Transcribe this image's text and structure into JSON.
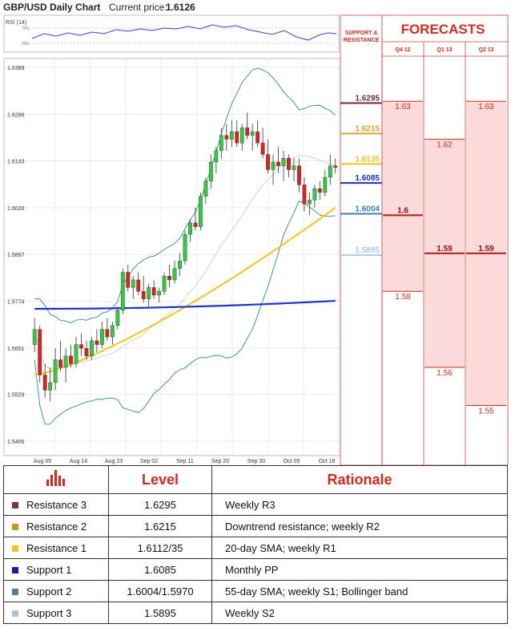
{
  "header": {
    "title": "GBP/USD Daily Chart",
    "price_label": "Current price:",
    "price_value": "1.6126"
  },
  "rsi_label": "RSI (14)",
  "rsi_levels": [
    "70%",
    "30%"
  ],
  "price_axis_ticks": [
    "1.6389",
    "1.6266",
    "1.6143",
    "1.6020",
    "1.5897",
    "1.5774",
    "1.5651",
    "1.5529",
    "1.5406"
  ],
  "date_axis_ticks": [
    "Aug 05",
    "Aug 14",
    "Aug 23",
    "Sep 02",
    "Sep 11",
    "Sep 20",
    "Sep 30",
    "Oct 09",
    "Oct 18"
  ],
  "sr_header": [
    "SUPPORT &",
    "RESISTANCE"
  ],
  "forecast_title": "FORECASTS",
  "forecast_cols": [
    "Q4 12",
    "Q1 13",
    "Q2 13"
  ],
  "chart_data": {
    "type": "candlestick",
    "title": "GBP/USD Daily Chart",
    "ylim": [
      1.5406,
      1.6389
    ],
    "levels": [
      {
        "value": 1.6295,
        "label": "1.6295",
        "color": "#6b2c3a"
      },
      {
        "value": 1.6215,
        "label": "1.6215",
        "color": "#d9a22a"
      },
      {
        "value": 1.6135,
        "label": "1.6135",
        "color": "#f2c21b"
      },
      {
        "value": 1.6085,
        "label": "1.6085",
        "color": "#1a2ec0"
      },
      {
        "value": 1.6004,
        "label": "1.6004",
        "color": "#3b7fb5"
      },
      {
        "value": 1.5895,
        "label": "1.5895",
        "color": "#aacbe0"
      }
    ],
    "forecasts": [
      {
        "period": "Q4 12",
        "values": [
          1.63,
          1.6,
          1.58
        ],
        "labels": [
          "1.63",
          "1.6",
          "1.58"
        ],
        "mid_index": 1
      },
      {
        "period": "Q1 13",
        "values": [
          1.62,
          1.59,
          1.56
        ],
        "labels": [
          "1.62",
          "1.59",
          "1.56"
        ],
        "mid_index": 1
      },
      {
        "period": "Q2 13",
        "values": [
          1.63,
          1.59,
          1.55
        ],
        "labels": [
          "1.63",
          "1.59",
          "1.55"
        ],
        "mid_index": 1
      }
    ],
    "candles": [
      [
        1.566,
        1.573,
        1.564,
        1.57
      ],
      [
        1.57,
        1.571,
        1.556,
        1.558
      ],
      [
        1.558,
        1.561,
        1.552,
        1.554
      ],
      [
        1.554,
        1.56,
        1.551,
        1.556
      ],
      [
        1.556,
        1.565,
        1.554,
        1.562
      ],
      [
        1.562,
        1.567,
        1.559,
        1.56
      ],
      [
        1.56,
        1.565,
        1.556,
        1.563
      ],
      [
        1.563,
        1.566,
        1.56,
        1.561
      ],
      [
        1.561,
        1.568,
        1.56,
        1.566
      ],
      [
        1.566,
        1.569,
        1.563,
        1.565
      ],
      [
        1.565,
        1.567,
        1.562,
        1.563
      ],
      [
        1.563,
        1.568,
        1.562,
        1.567
      ],
      [
        1.567,
        1.57,
        1.564,
        1.566
      ],
      [
        1.566,
        1.572,
        1.565,
        1.57
      ],
      [
        1.57,
        1.573,
        1.567,
        1.568
      ],
      [
        1.568,
        1.572,
        1.566,
        1.571
      ],
      [
        1.571,
        1.576,
        1.57,
        1.575
      ],
      [
        1.575,
        1.586,
        1.574,
        1.585
      ],
      [
        1.585,
        1.587,
        1.58,
        1.581
      ],
      [
        1.581,
        1.584,
        1.578,
        1.583
      ],
      [
        1.583,
        1.585,
        1.579,
        1.58
      ],
      [
        1.58,
        1.584,
        1.577,
        1.578
      ],
      [
        1.578,
        1.582,
        1.576,
        1.581
      ],
      [
        1.581,
        1.583,
        1.578,
        1.579
      ],
      [
        1.579,
        1.581,
        1.577,
        1.58
      ],
      [
        1.58,
        1.585,
        1.579,
        1.584
      ],
      [
        1.584,
        1.587,
        1.581,
        1.583
      ],
      [
        1.583,
        1.588,
        1.582,
        1.586
      ],
      [
        1.586,
        1.59,
        1.584,
        1.588
      ],
      [
        1.588,
        1.596,
        1.587,
        1.595
      ],
      [
        1.595,
        1.599,
        1.593,
        1.598
      ],
      [
        1.598,
        1.602,
        1.596,
        1.597
      ],
      [
        1.597,
        1.606,
        1.596,
        1.605
      ],
      [
        1.605,
        1.61,
        1.603,
        1.609
      ],
      [
        1.609,
        1.616,
        1.607,
        1.614
      ],
      [
        1.614,
        1.618,
        1.611,
        1.617
      ],
      [
        1.617,
        1.623,
        1.615,
        1.621
      ],
      [
        1.621,
        1.624,
        1.617,
        1.62
      ],
      [
        1.62,
        1.625,
        1.618,
        1.622
      ],
      [
        1.622,
        1.625,
        1.618,
        1.619
      ],
      [
        1.619,
        1.624,
        1.617,
        1.623
      ],
      [
        1.623,
        1.627,
        1.62,
        1.621
      ],
      [
        1.621,
        1.624,
        1.617,
        1.622
      ],
      [
        1.622,
        1.625,
        1.618,
        1.619
      ],
      [
        1.619,
        1.623,
        1.615,
        1.616
      ],
      [
        1.616,
        1.62,
        1.611,
        1.612
      ],
      [
        1.612,
        1.616,
        1.608,
        1.614
      ],
      [
        1.614,
        1.618,
        1.611,
        1.613
      ],
      [
        1.613,
        1.617,
        1.609,
        1.615
      ],
      [
        1.615,
        1.616,
        1.61,
        1.612
      ],
      [
        1.612,
        1.615,
        1.609,
        1.613
      ],
      [
        1.613,
        1.615,
        1.606,
        1.608
      ],
      [
        1.608,
        1.61,
        1.601,
        1.603
      ],
      [
        1.603,
        1.606,
        1.6,
        1.604
      ],
      [
        1.604,
        1.608,
        1.602,
        1.607
      ],
      [
        1.607,
        1.609,
        1.604,
        1.606
      ],
      [
        1.606,
        1.612,
        1.605,
        1.61
      ],
      [
        1.61,
        1.616,
        1.608,
        1.613
      ],
      [
        1.613,
        1.615,
        1.611,
        1.6126
      ]
    ],
    "ma_200": [
      1.5754,
      1.5775
    ],
    "ma_55": [
      1.558,
      1.602
    ],
    "bollinger": "upper/lower bands"
  },
  "table": {
    "headers": [
      "",
      "Level",
      "Rationale"
    ],
    "rows": [
      {
        "name": "Resistance 3",
        "level": "1.6295",
        "rationale": "Weekly R3",
        "color": "#7a3a3a"
      },
      {
        "name": "Resistance 2",
        "level": "1.6215",
        "rationale": "Downtrend resistance; weekly R2",
        "color": "#c8961e"
      },
      {
        "name": "Resistance 1",
        "level": "1.6112/35",
        "rationale": "20-day SMA; weekly R1",
        "color": "#f4c41a"
      },
      {
        "name": "Support 1",
        "level": "1.6085",
        "rationale": "Monthly PP",
        "color": "#1a1ab0"
      },
      {
        "name": "Support 2",
        "level": "1.6004/1.5970",
        "rationale": "55-day SMA; weekly S1; Bollinger band",
        "color": "#4a7fb0"
      },
      {
        "name": "Support 3",
        "level": "1.5895",
        "rationale": "Weekly S2",
        "color": "#a8c4e0"
      }
    ]
  }
}
